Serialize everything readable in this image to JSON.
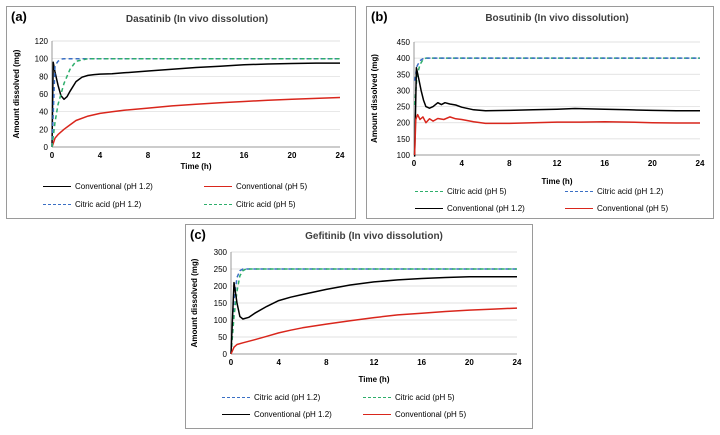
{
  "chart_data": [
    {
      "panel_label": "(a)",
      "type": "line",
      "title": "Dasatinib (In vivo dissolution)",
      "xlabel": "Time (h)",
      "ylabel": "Amount dissolved (mg)",
      "xlim": [
        0,
        24
      ],
      "ylim": [
        0,
        120
      ],
      "xticks": [
        0,
        4,
        8,
        12,
        16,
        20,
        24
      ],
      "yticks": [
        0,
        20,
        40,
        60,
        80,
        100,
        120
      ],
      "grid": true,
      "legend_position": "bottom",
      "series": [
        {
          "name": "Conventional (pH 1.2)",
          "color": "#000000",
          "dash": "solid",
          "x": [
            0,
            0.1,
            0.25,
            0.5,
            0.75,
            1,
            1.25,
            1.5,
            2,
            2.5,
            3,
            3.5,
            4,
            5,
            6,
            8,
            10,
            12,
            14,
            16,
            18,
            20,
            22,
            24
          ],
          "y": [
            0,
            96,
            85,
            70,
            58,
            54,
            57,
            63,
            74,
            79,
            81,
            82,
            82.5,
            83,
            84,
            86,
            88,
            90,
            91.5,
            93,
            94,
            94.5,
            95,
            95
          ]
        },
        {
          "name": "Conventional (pH 5)",
          "color": "#d9261c",
          "dash": "solid",
          "x": [
            0,
            0.25,
            0.5,
            1,
            1.5,
            2,
            3,
            4,
            5,
            6,
            8,
            10,
            12,
            14,
            16,
            18,
            20,
            22,
            24
          ],
          "y": [
            0,
            10,
            14,
            20,
            25,
            30,
            35,
            38,
            40,
            41.5,
            44,
            46.5,
            48.5,
            50,
            51.5,
            53,
            54,
            55,
            56
          ]
        },
        {
          "name": "Citric acid (pH 1.2)",
          "color": "#3a6fc4",
          "dash": "4,3",
          "x": [
            0,
            0.25,
            0.5,
            0.75,
            1,
            1.5,
            24
          ],
          "y": [
            0,
            92,
            97,
            99.5,
            100,
            100,
            100
          ]
        },
        {
          "name": "Citric acid (pH 5)",
          "color": "#2eae6b",
          "dash": "4,3",
          "x": [
            0,
            0.25,
            0.5,
            1,
            1.5,
            2,
            3,
            24
          ],
          "y": [
            0,
            28,
            48,
            72,
            88,
            97,
            100,
            100
          ]
        }
      ]
    },
    {
      "panel_label": "(b)",
      "type": "line",
      "title": "Bosutinib (In vivo dissolution)",
      "xlabel": "Time (h)",
      "ylabel": "Amount dissolved (mg)",
      "xlim": [
        0,
        24
      ],
      "ylim": [
        100,
        450
      ],
      "xticks": [
        0,
        4,
        8,
        12,
        16,
        20,
        24
      ],
      "yticks": [
        100,
        150,
        200,
        250,
        300,
        350,
        400,
        450
      ],
      "grid": true,
      "legend_position": "bottom",
      "series": [
        {
          "name": "Citric acid (pH 5)",
          "color": "#2eae6b",
          "dash": "4,3",
          "x": [
            0.05,
            0.25,
            0.5,
            0.75,
            1,
            24
          ],
          "y": [
            255,
            345,
            380,
            395,
            400,
            400
          ]
        },
        {
          "name": "Citric acid (pH 1.2)",
          "color": "#3a6fc4",
          "dash": "4,3",
          "x": [
            0.05,
            0.25,
            0.5,
            0.75,
            1,
            24
          ],
          "y": [
            330,
            375,
            392,
            398,
            400,
            400
          ]
        },
        {
          "name": "Conventional (pH 1.2)",
          "color": "#000000",
          "dash": "solid",
          "x": [
            0.05,
            0.2,
            0.4,
            0.6,
            0.8,
            1,
            1.3,
            1.6,
            2,
            2.3,
            2.6,
            3,
            3.5,
            4,
            5,
            6,
            8,
            10,
            12,
            13.5,
            16,
            18,
            20,
            22,
            24
          ],
          "y": [
            95,
            370,
            335,
            300,
            270,
            250,
            245,
            250,
            262,
            256,
            262,
            258,
            255,
            248,
            240,
            237,
            238,
            240,
            242,
            244,
            242,
            240,
            238,
            237,
            237
          ]
        },
        {
          "name": "Conventional (pH 5)",
          "color": "#d9261c",
          "dash": "solid",
          "x": [
            0.05,
            0.15,
            0.3,
            0.5,
            0.75,
            1,
            1.3,
            1.6,
            2,
            2.5,
            3,
            3.5,
            4,
            5,
            6,
            8,
            10,
            12,
            14,
            16,
            18,
            20,
            22,
            24
          ],
          "y": [
            100,
            210,
            225,
            210,
            218,
            200,
            212,
            205,
            213,
            210,
            218,
            212,
            210,
            203,
            198,
            198,
            200,
            202,
            202,
            203,
            202,
            200,
            199,
            199
          ]
        }
      ]
    },
    {
      "panel_label": "(c)",
      "type": "line",
      "title": "Gefitinib (In vivo dissolution)",
      "xlabel": "Time (h)",
      "ylabel": "Amount dissolved (mg)",
      "xlim": [
        0,
        24
      ],
      "ylim": [
        0,
        300
      ],
      "xticks": [
        0,
        4,
        8,
        12,
        16,
        20,
        24
      ],
      "yticks": [
        0,
        50,
        100,
        150,
        200,
        250,
        300
      ],
      "grid": true,
      "legend_position": "bottom",
      "series": [
        {
          "name": "Citric acid (pH 1.2)",
          "color": "#3a6fc4",
          "dash": "4,3",
          "x": [
            0,
            0.25,
            0.5,
            0.75,
            1,
            24
          ],
          "y": [
            0,
            160,
            225,
            245,
            250,
            250
          ]
        },
        {
          "name": "Citric acid (pH 5)",
          "color": "#2eae6b",
          "dash": "4,3",
          "x": [
            0,
            0.25,
            0.5,
            0.75,
            1,
            1.25,
            24
          ],
          "y": [
            0,
            110,
            185,
            230,
            245,
            250,
            250
          ]
        },
        {
          "name": "Conventional (pH 1.2)",
          "color": "#000000",
          "dash": "solid",
          "x": [
            0,
            0.25,
            0.5,
            0.75,
            1,
            1.5,
            2,
            3,
            4,
            5,
            6,
            8,
            10,
            12,
            14,
            16,
            18,
            20,
            22,
            24
          ],
          "y": [
            0,
            210,
            150,
            110,
            103,
            108,
            120,
            140,
            157,
            167,
            175,
            190,
            203,
            212,
            218,
            222,
            225,
            227,
            227,
            227
          ]
        },
        {
          "name": "Conventional (pH 5)",
          "color": "#d9261c",
          "dash": "solid",
          "x": [
            0,
            0.25,
            0.5,
            1,
            2,
            3,
            4,
            5,
            6,
            8,
            10,
            12,
            14,
            16,
            18,
            20,
            22,
            24
          ],
          "y": [
            0,
            20,
            28,
            33,
            42,
            52,
            62,
            70,
            77,
            88,
            98,
            107,
            115,
            120,
            125,
            129,
            132,
            135
          ]
        }
      ]
    }
  ]
}
